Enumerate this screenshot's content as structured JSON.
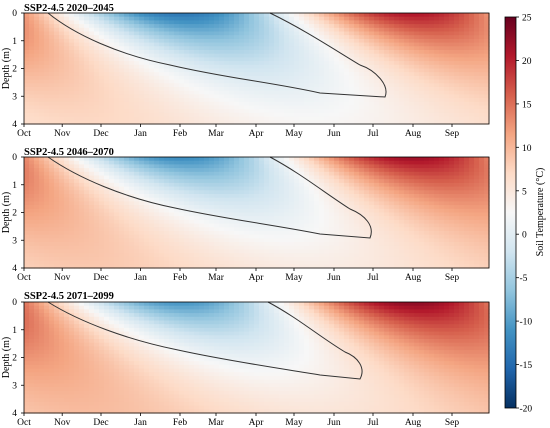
{
  "chart_data": [
    {
      "type": "heatmap",
      "title": "SSP2-4.5  2020–2045",
      "xlabel": "",
      "ylabel": "Depth (m)",
      "x_ticks": [
        "Oct",
        "Nov",
        "Dec",
        "Jan",
        "Feb",
        "Mar",
        "Apr",
        "May",
        "Jun",
        "Jul",
        "Aug",
        "Sep"
      ],
      "y_ticks": [
        "0",
        "1",
        "2",
        "3",
        "4"
      ],
      "ylim": [
        4,
        0
      ],
      "min_surface_temp_c": -13,
      "max_surface_temp_c": 22,
      "zero_contour_freeze_month": "Oct",
      "zero_contour_thaw_month": "Apr",
      "zero_contour_max_depth_m": 3.0,
      "zero_contour_max_depth_month": "Jul"
    },
    {
      "type": "heatmap",
      "title": "SSP2-4.5  2046–2070",
      "xlabel": "",
      "ylabel": "Depth (m)",
      "x_ticks": [
        "Oct",
        "Nov",
        "Dec",
        "Jan",
        "Feb",
        "Mar",
        "Apr",
        "May",
        "Jun",
        "Jul",
        "Aug",
        "Sep"
      ],
      "y_ticks": [
        "0",
        "1",
        "2",
        "3",
        "4"
      ],
      "ylim": [
        4,
        0
      ],
      "min_surface_temp_c": -11,
      "max_surface_temp_c": 23,
      "zero_contour_freeze_month": "Oct",
      "zero_contour_thaw_month": "Apr",
      "zero_contour_max_depth_m": 2.8,
      "zero_contour_max_depth_month": "Jun"
    },
    {
      "type": "heatmap",
      "title": "SSP2-4.5  2071–2099",
      "xlabel": "",
      "ylabel": "Depth (m)",
      "x_ticks": [
        "Oct",
        "Nov",
        "Dec",
        "Jan",
        "Feb",
        "Mar",
        "Apr",
        "May",
        "Jun",
        "Jul",
        "Aug",
        "Sep"
      ],
      "y_ticks": [
        "0",
        "1",
        "2",
        "3",
        "4"
      ],
      "ylim": [
        4,
        0
      ],
      "min_surface_temp_c": -10,
      "max_surface_temp_c": 24,
      "zero_contour_freeze_month": "Oct",
      "zero_contour_thaw_month": "Apr",
      "zero_contour_max_depth_m": 2.6,
      "zero_contour_max_depth_month": "Jun"
    }
  ],
  "colorbar": {
    "label": "Soil Temperature (°C)",
    "range": [
      -20,
      25
    ],
    "ticks": [
      "25",
      "20",
      "15",
      "10",
      "5",
      "0",
      "-5",
      "-10",
      "-15",
      "-20"
    ],
    "colors": [
      "#053061",
      "#2166ac",
      "#4393c3",
      "#92c5de",
      "#d1e5f0",
      "#f7f7f7",
      "#fddbc7",
      "#f4a582",
      "#d6604d",
      "#b2182b",
      "#67001f"
    ]
  }
}
